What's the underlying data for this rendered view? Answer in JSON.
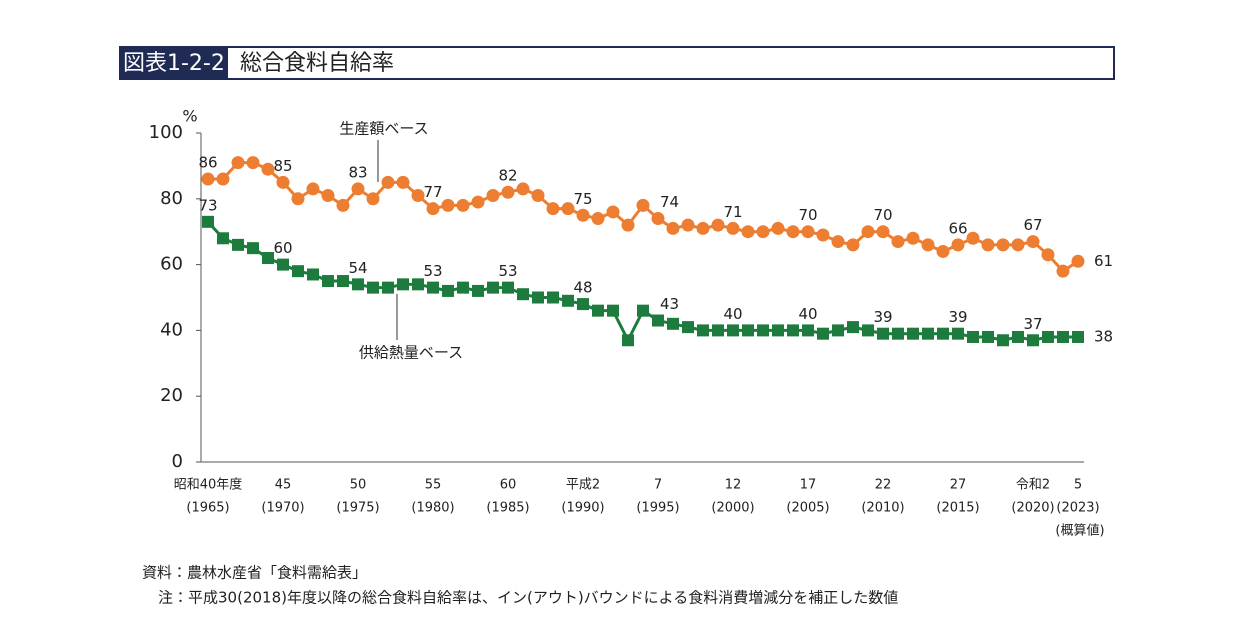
{
  "header": {
    "label": "図表1-2-2",
    "title": "総合食料自給率"
  },
  "chart_data": {
    "type": "line",
    "y_unit": "%",
    "categories": [
      "昭和40年度",
      null,
      null,
      null,
      null,
      "45",
      null,
      null,
      null,
      null,
      "50",
      null,
      null,
      null,
      null,
      "55",
      null,
      null,
      null,
      null,
      "60",
      null,
      null,
      null,
      null,
      "平成2",
      null,
      null,
      null,
      null,
      "7",
      null,
      null,
      null,
      null,
      "12",
      null,
      null,
      null,
      null,
      "17",
      null,
      null,
      null,
      null,
      "22",
      null,
      null,
      null,
      null,
      "27",
      null,
      null,
      null,
      null,
      "令和2",
      null,
      null,
      "5"
    ],
    "category_years": [
      "(1965)",
      null,
      null,
      null,
      null,
      "(1970)",
      null,
      null,
      null,
      null,
      "(1975)",
      null,
      null,
      null,
      null,
      "(1980)",
      null,
      null,
      null,
      null,
      "(1985)",
      null,
      null,
      null,
      null,
      "(1990)",
      null,
      null,
      null,
      null,
      "(1995)",
      null,
      null,
      null,
      null,
      "(2000)",
      null,
      null,
      null,
      null,
      "(2005)",
      null,
      null,
      null,
      null,
      "(2010)",
      null,
      null,
      null,
      null,
      "(2015)",
      null,
      null,
      null,
      null,
      "(2020)",
      null,
      null,
      "(2023)"
    ],
    "category_notes": [
      null,
      null,
      null,
      null,
      null,
      null,
      null,
      null,
      null,
      null,
      null,
      null,
      null,
      null,
      null,
      null,
      null,
      null,
      null,
      null,
      null,
      null,
      null,
      null,
      null,
      null,
      null,
      null,
      null,
      null,
      null,
      null,
      null,
      null,
      null,
      null,
      null,
      null,
      null,
      null,
      null,
      null,
      null,
      null,
      null,
      null,
      null,
      null,
      null,
      null,
      null,
      null,
      null,
      null,
      null,
      null,
      null,
      null,
      "(概算値)"
    ],
    "ylim": [
      0,
      100
    ],
    "yticks": [
      0,
      20,
      40,
      60,
      80,
      100
    ],
    "series": [
      {
        "name": "生産額ベース",
        "color": "#ed7d31",
        "marker": "circle",
        "values": [
          86,
          86,
          91,
          91,
          89,
          85,
          80,
          83,
          81,
          78,
          83,
          80,
          85,
          85,
          81,
          77,
          78,
          78,
          79,
          81,
          82,
          83,
          81,
          77,
          77,
          75,
          74,
          76,
          72,
          78,
          74,
          71,
          72,
          71,
          72,
          71,
          70,
          70,
          71,
          70,
          70,
          69,
          67,
          66,
          70,
          70,
          67,
          68,
          66,
          64,
          66,
          68,
          66,
          66,
          66,
          67,
          63,
          58,
          61
        ],
        "value_labels": [
          "86",
          null,
          null,
          null,
          null,
          "85",
          null,
          null,
          null,
          null,
          "83",
          null,
          null,
          null,
          null,
          "77",
          null,
          null,
          null,
          null,
          "82",
          null,
          null,
          null,
          null,
          "75",
          null,
          null,
          null,
          null,
          "74",
          null,
          null,
          null,
          null,
          "71",
          null,
          null,
          null,
          null,
          "70",
          null,
          null,
          null,
          null,
          "70",
          null,
          null,
          null,
          null,
          "66",
          null,
          null,
          null,
          null,
          "67",
          null,
          null,
          "61"
        ]
      },
      {
        "name": "供給熱量ベース",
        "color": "#1e7b3e",
        "marker": "square",
        "values": [
          73,
          68,
          66,
          65,
          62,
          60,
          58,
          57,
          55,
          55,
          54,
          53,
          53,
          54,
          54,
          53,
          52,
          53,
          52,
          53,
          53,
          51,
          50,
          50,
          49,
          48,
          46,
          46,
          37,
          46,
          43,
          42,
          41,
          40,
          40,
          40,
          40,
          40,
          40,
          40,
          40,
          39,
          40,
          41,
          40,
          39,
          39,
          39,
          39,
          39,
          39,
          38,
          38,
          37,
          38,
          37,
          38,
          38,
          38
        ],
        "value_labels": [
          "73",
          null,
          null,
          null,
          null,
          "60",
          null,
          null,
          null,
          null,
          "54",
          null,
          null,
          null,
          null,
          "53",
          null,
          null,
          null,
          null,
          "53",
          null,
          null,
          null,
          null,
          "48",
          null,
          null,
          null,
          null,
          "43",
          null,
          null,
          null,
          null,
          "40",
          null,
          null,
          null,
          null,
          "40",
          null,
          null,
          null,
          null,
          "39",
          null,
          null,
          null,
          null,
          "39",
          null,
          null,
          null,
          null,
          "37",
          null,
          null,
          "38"
        ]
      }
    ]
  },
  "footer": {
    "source": "資料：農林水産省「食料需給表」",
    "note": "注：平成30(2018)年度以降の総合食料自給率は、イン(アウト)バウンドによる食料消費増減分を補正した数値"
  }
}
